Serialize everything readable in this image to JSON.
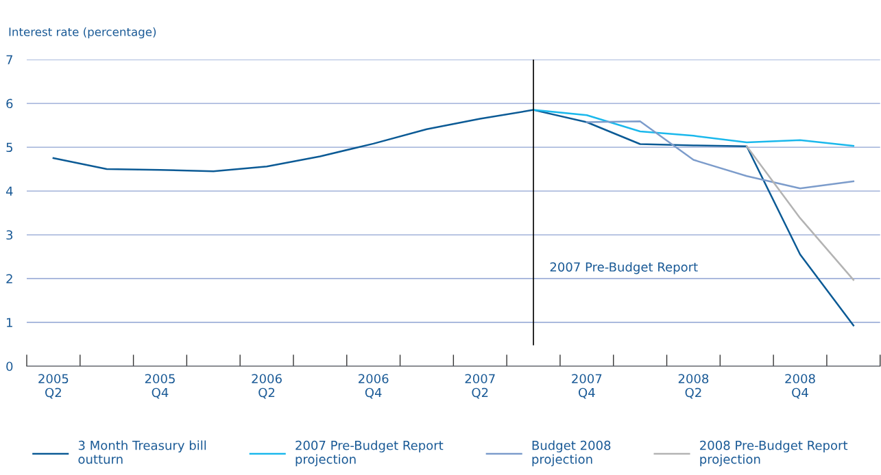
{
  "chart_data": {
    "type": "line",
    "ylabel": "Interest rate (percentage)",
    "categories": [
      "2005\nQ2",
      null,
      "2005\nQ4",
      null,
      "2006\nQ2",
      null,
      "2006\nQ4",
      null,
      "2007\nQ2",
      null,
      "2007\nQ4",
      null,
      "2008\nQ2",
      null,
      "2008\nQ4",
      null
    ],
    "series": [
      {
        "name": "3 Month Treasury bill\noutturn",
        "color": "#0b5a95",
        "values": [
          4.75,
          4.5,
          4.48,
          4.45,
          4.56,
          4.79,
          5.08,
          5.41,
          5.65,
          5.85,
          5.57,
          5.07,
          5.04,
          5.02,
          2.55,
          0.93
        ]
      },
      {
        "name": "2007 Pre-Budget Report\nprojection",
        "color": "#1ab8ec",
        "values": [
          null,
          null,
          null,
          null,
          null,
          null,
          null,
          null,
          null,
          5.85,
          5.73,
          5.36,
          5.26,
          5.11,
          5.16,
          5.03
        ]
      },
      {
        "name": "Budget 2008\nprojection",
        "color": "#7c9ccb",
        "values": [
          null,
          null,
          null,
          null,
          null,
          null,
          null,
          null,
          null,
          null,
          5.57,
          5.59,
          4.71,
          4.34,
          4.06,
          4.22
        ]
      },
      {
        "name": "2008 Pre-Budget Report\nprojection",
        "color": "#b3b3b3",
        "values": [
          null,
          null,
          null,
          null,
          null,
          null,
          null,
          null,
          null,
          null,
          null,
          null,
          null,
          5.02,
          3.38,
          1.97
        ]
      }
    ],
    "ylim": [
      0,
      7
    ],
    "yticks": [
      0,
      1,
      2,
      3,
      4,
      5,
      6,
      7
    ],
    "grid": "y",
    "legend": "bottom",
    "marker": "none",
    "line_style": "solid",
    "annotations": [
      "2007 Pre-Budget Report"
    ]
  }
}
